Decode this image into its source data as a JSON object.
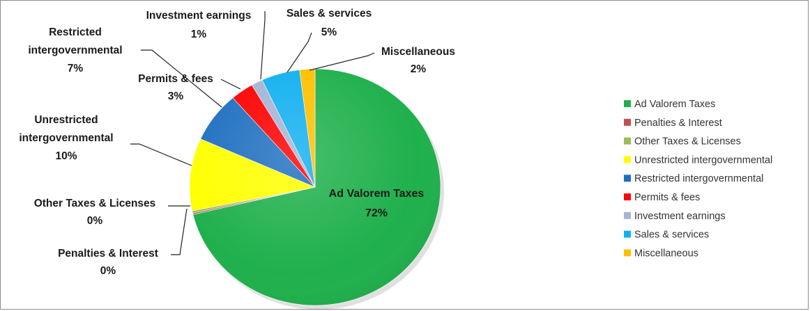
{
  "chart_data": {
    "type": "pie",
    "title": "",
    "legend_position": "right",
    "slices": [
      {
        "name": "Ad Valorem Taxes",
        "value": 72,
        "label": "72%",
        "color": "#1FB04C"
      },
      {
        "name": "Penalties & Interest",
        "value": 0.2,
        "label": "0%",
        "color": "#C0504D"
      },
      {
        "name": "Other Taxes & Licenses",
        "value": 0.3,
        "label": "0%",
        "color": "#9BBB59"
      },
      {
        "name": "Unrestricted intergovernmental",
        "value": 10,
        "label": "10%",
        "color": "#FFFF00"
      },
      {
        "name": "Restricted intergovernmental",
        "value": 7,
        "label": "7%",
        "color": "#1F6FC0"
      },
      {
        "name": "Permits & fees",
        "value": 3,
        "label": "3%",
        "color": "#FF0000"
      },
      {
        "name": "Investment earnings",
        "value": 1.5,
        "label": "1%",
        "color": "#A5B4D6"
      },
      {
        "name": "Sales & services",
        "value": 5,
        "label": "5%",
        "color": "#12B0F0"
      },
      {
        "name": "Miscellaneous",
        "value": 2,
        "label": "2%",
        "color": "#FFC000"
      }
    ]
  }
}
